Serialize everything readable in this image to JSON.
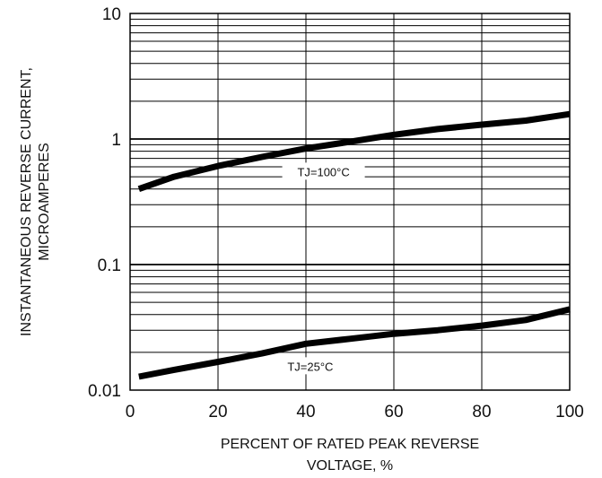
{
  "chart_data": {
    "type": "line",
    "title": "",
    "xlabel_lines": [
      "PERCENT OF RATED PEAK REVERSE",
      "VOLTAGE, %"
    ],
    "ylabel_lines": [
      "INSTANTANEOUS REVERSE CURRENT,",
      "MICROAMPERES"
    ],
    "xlim": [
      0,
      100
    ],
    "ylim": [
      0.01,
      10
    ],
    "yscale": "log",
    "grid": true,
    "x_ticks": [
      0,
      20,
      40,
      60,
      80,
      100
    ],
    "x_tick_labels": [
      "0",
      "20",
      "40",
      "60",
      "80",
      "100"
    ],
    "y_ticks": [
      0.01,
      0.1,
      1,
      10
    ],
    "y_tick_labels": [
      "0.01",
      "0.1",
      "1",
      "10"
    ],
    "series": [
      {
        "name": "T<sub>J</sub>=100°C",
        "label_text": "TJ=100°C",
        "x": [
          2,
          10,
          20,
          30,
          40,
          50,
          60,
          70,
          80,
          90,
          100
        ],
        "y": [
          0.4,
          0.5,
          0.61,
          0.72,
          0.84,
          0.95,
          1.08,
          1.2,
          1.3,
          1.4,
          1.58
        ]
      },
      {
        "name": "T<sub>J</sub>=25°C",
        "label_text": "TJ=25°C",
        "x": [
          2,
          10,
          20,
          30,
          40,
          50,
          60,
          70,
          80,
          90,
          100
        ],
        "y": [
          0.0128,
          0.0145,
          0.0168,
          0.0196,
          0.0234,
          0.0256,
          0.0281,
          0.03,
          0.0326,
          0.0362,
          0.044
        ]
      }
    ],
    "line_color": "#000000"
  }
}
